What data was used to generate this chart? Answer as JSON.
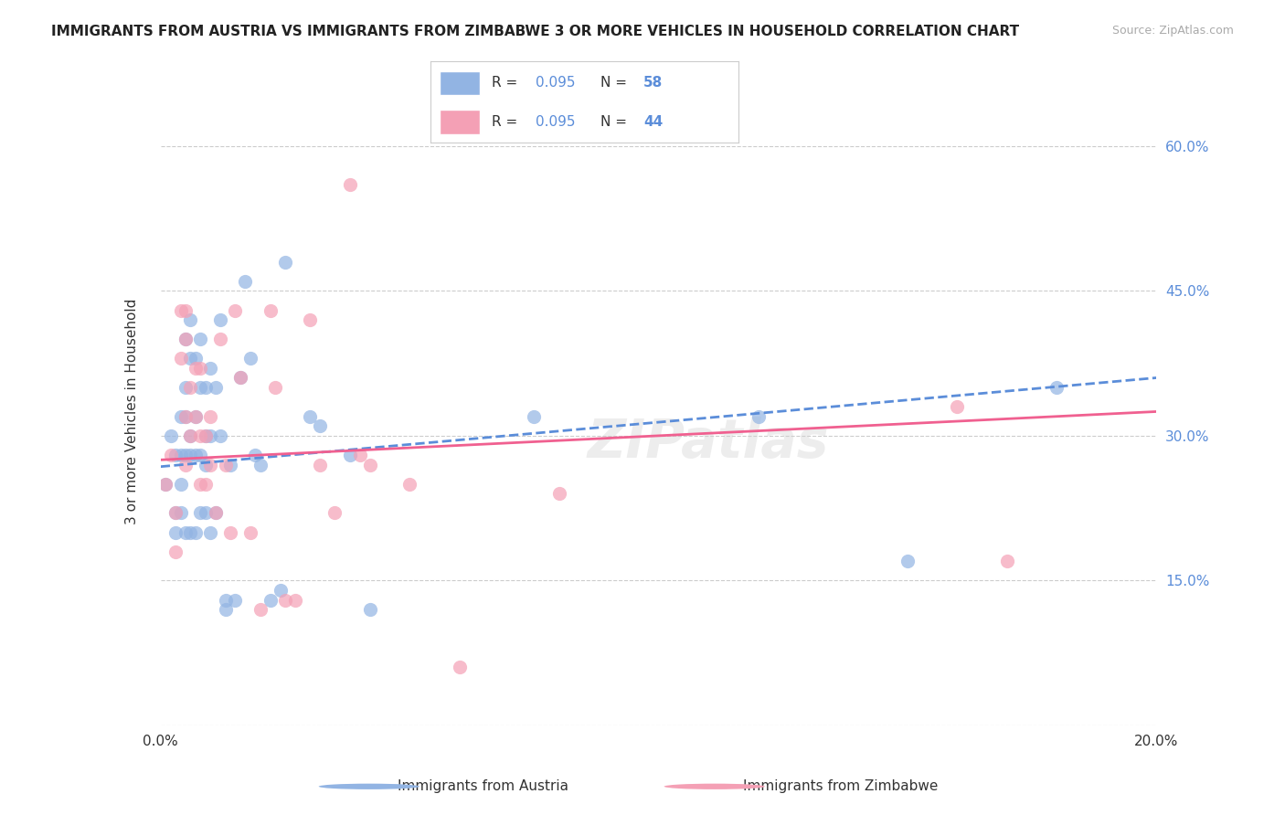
{
  "title": "IMMIGRANTS FROM AUSTRIA VS IMMIGRANTS FROM ZIMBABWE 3 OR MORE VEHICLES IN HOUSEHOLD CORRELATION CHART",
  "source": "Source: ZipAtlas.com",
  "xlabel": "",
  "ylabel": "3 or more Vehicles in Household",
  "xlim": [
    0.0,
    0.2
  ],
  "ylim": [
    0.0,
    0.65
  ],
  "austria_R": 0.095,
  "austria_N": 58,
  "zimbabwe_R": 0.095,
  "zimbabwe_N": 44,
  "austria_color": "#92b4e3",
  "zimbabwe_color": "#f4a0b5",
  "austria_line_color": "#5b8dd9",
  "zimbabwe_line_color": "#f06090",
  "legend_label_austria": "Immigrants from Austria",
  "legend_label_zimbabwe": "Immigrants from Zimbabwe",
  "background_color": "#ffffff",
  "grid_color": "#cccccc",
  "austria_x": [
    0.001,
    0.002,
    0.003,
    0.003,
    0.003,
    0.004,
    0.004,
    0.004,
    0.004,
    0.005,
    0.005,
    0.005,
    0.005,
    0.005,
    0.006,
    0.006,
    0.006,
    0.006,
    0.006,
    0.007,
    0.007,
    0.007,
    0.007,
    0.008,
    0.008,
    0.008,
    0.008,
    0.009,
    0.009,
    0.009,
    0.009,
    0.01,
    0.01,
    0.01,
    0.011,
    0.011,
    0.012,
    0.012,
    0.013,
    0.013,
    0.014,
    0.015,
    0.016,
    0.017,
    0.018,
    0.019,
    0.02,
    0.022,
    0.024,
    0.025,
    0.03,
    0.032,
    0.038,
    0.042,
    0.075,
    0.12,
    0.15,
    0.18
  ],
  "austria_y": [
    0.25,
    0.3,
    0.28,
    0.22,
    0.2,
    0.32,
    0.28,
    0.25,
    0.22,
    0.4,
    0.35,
    0.32,
    0.28,
    0.2,
    0.42,
    0.38,
    0.3,
    0.28,
    0.2,
    0.38,
    0.32,
    0.28,
    0.2,
    0.4,
    0.35,
    0.28,
    0.22,
    0.35,
    0.3,
    0.27,
    0.22,
    0.37,
    0.3,
    0.2,
    0.35,
    0.22,
    0.42,
    0.3,
    0.13,
    0.12,
    0.27,
    0.13,
    0.36,
    0.46,
    0.38,
    0.28,
    0.27,
    0.13,
    0.14,
    0.48,
    0.32,
    0.31,
    0.28,
    0.12,
    0.32,
    0.32,
    0.17,
    0.35
  ],
  "zimbabwe_x": [
    0.001,
    0.002,
    0.003,
    0.003,
    0.004,
    0.004,
    0.005,
    0.005,
    0.005,
    0.005,
    0.006,
    0.006,
    0.007,
    0.007,
    0.008,
    0.008,
    0.008,
    0.009,
    0.009,
    0.01,
    0.01,
    0.011,
    0.012,
    0.013,
    0.014,
    0.015,
    0.016,
    0.018,
    0.02,
    0.022,
    0.023,
    0.025,
    0.027,
    0.03,
    0.032,
    0.035,
    0.038,
    0.04,
    0.042,
    0.05,
    0.06,
    0.08,
    0.16,
    0.17
  ],
  "zimbabwe_y": [
    0.25,
    0.28,
    0.22,
    0.18,
    0.43,
    0.38,
    0.43,
    0.4,
    0.32,
    0.27,
    0.35,
    0.3,
    0.37,
    0.32,
    0.37,
    0.3,
    0.25,
    0.3,
    0.25,
    0.32,
    0.27,
    0.22,
    0.4,
    0.27,
    0.2,
    0.43,
    0.36,
    0.2,
    0.12,
    0.43,
    0.35,
    0.13,
    0.13,
    0.42,
    0.27,
    0.22,
    0.56,
    0.28,
    0.27,
    0.25,
    0.06,
    0.24,
    0.33,
    0.17
  ],
  "austria_trend_x": [
    0.0,
    0.2
  ],
  "austria_trend_y": [
    0.268,
    0.36
  ],
  "zimbabwe_trend_x": [
    0.0,
    0.2
  ],
  "zimbabwe_trend_y": [
    0.275,
    0.325
  ]
}
